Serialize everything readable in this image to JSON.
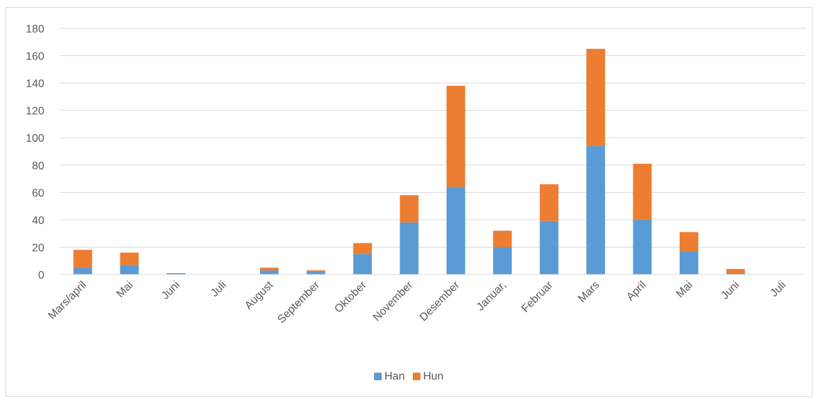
{
  "chart_data": {
    "type": "bar",
    "stacked": true,
    "title": "",
    "xlabel": "",
    "ylabel": "",
    "categories": [
      "Mars/april",
      "Mai",
      "Juni",
      "Juli",
      "August",
      "September",
      "Oktober",
      "November",
      "Desember",
      "Januar,",
      "Februar",
      "Mars",
      "April",
      "Mai",
      "Juni",
      "Juli"
    ],
    "series": [
      {
        "name": "Han",
        "color": "#5b9bd5",
        "values": [
          5,
          7,
          1,
          0,
          3,
          2,
          15,
          38,
          64,
          20,
          39,
          94,
          40,
          17,
          1,
          0
        ]
      },
      {
        "name": "Hun",
        "color": "#ed7d31",
        "values": [
          13,
          9,
          0,
          0,
          2,
          1,
          8,
          20,
          74,
          12,
          27,
          71,
          41,
          14,
          3,
          0
        ]
      }
    ],
    "ylim": [
      0,
      180
    ],
    "yticks": [
      "0",
      "20",
      "40",
      "60",
      "80",
      "100",
      "120",
      "140",
      "160",
      "180"
    ],
    "grid": true,
    "legend_position": "bottom"
  }
}
